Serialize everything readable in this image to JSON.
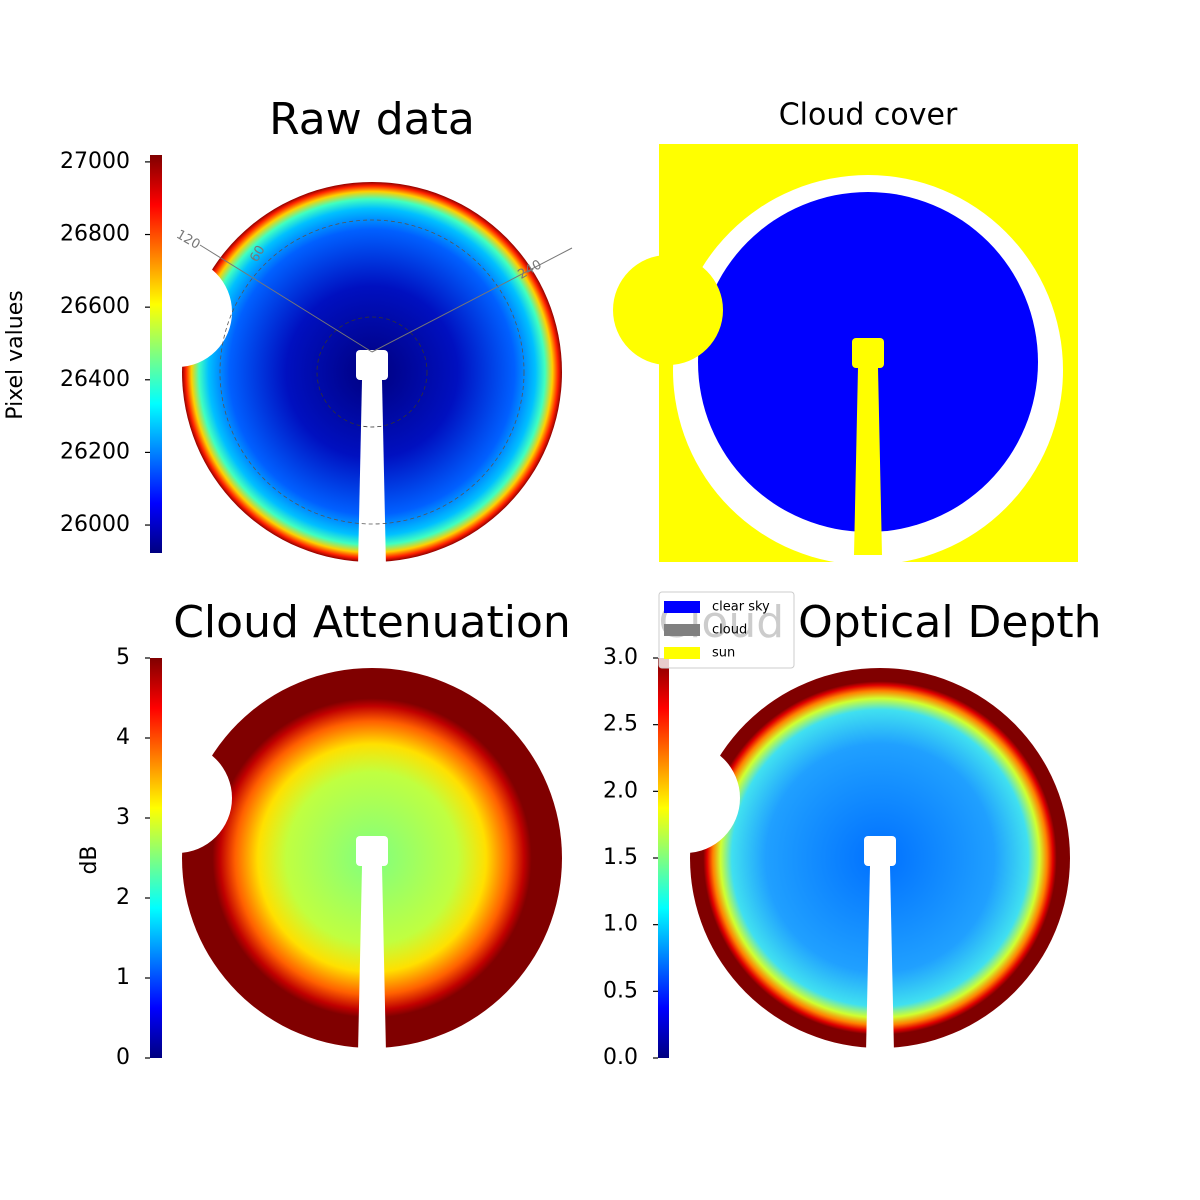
{
  "chart_data": [
    {
      "type": "heatmap",
      "title": "Raw data",
      "colormap": "jet",
      "colorbar_label": "Pixel values",
      "ylim": [
        25923,
        27019
      ],
      "yticks": [
        26000,
        26200,
        26400,
        26600,
        26800,
        27000
      ],
      "annotations": [
        "120",
        "60",
        "240"
      ]
    },
    {
      "type": "mask",
      "title": "Cloud cover",
      "legend": [
        {
          "name": "clear sky",
          "color": "#0000ff"
        },
        {
          "name": "cloud",
          "color": "#808080"
        },
        {
          "name": "sun",
          "color": "#ffff00"
        }
      ]
    },
    {
      "type": "heatmap",
      "title": "Cloud Attenuation",
      "colormap": "jet",
      "colorbar_label": "dB",
      "ylim": [
        0,
        5
      ],
      "yticks": [
        0,
        1,
        2,
        3,
        4,
        5
      ]
    },
    {
      "type": "heatmap",
      "title": "Cloud Optical Depth",
      "colormap": "jet",
      "ylim": [
        0,
        3
      ],
      "yticks": [
        {
          "value": 0,
          "label": "0.0"
        },
        {
          "value": 0.5,
          "label": "0.5"
        },
        {
          "value": 1,
          "label": "1.0"
        },
        {
          "value": 1.5,
          "label": "1.5"
        },
        {
          "value": 2,
          "label": "2.0"
        },
        {
          "value": 2.5,
          "label": "2.5"
        },
        {
          "value": 3,
          "label": "3.0"
        }
      ]
    }
  ]
}
